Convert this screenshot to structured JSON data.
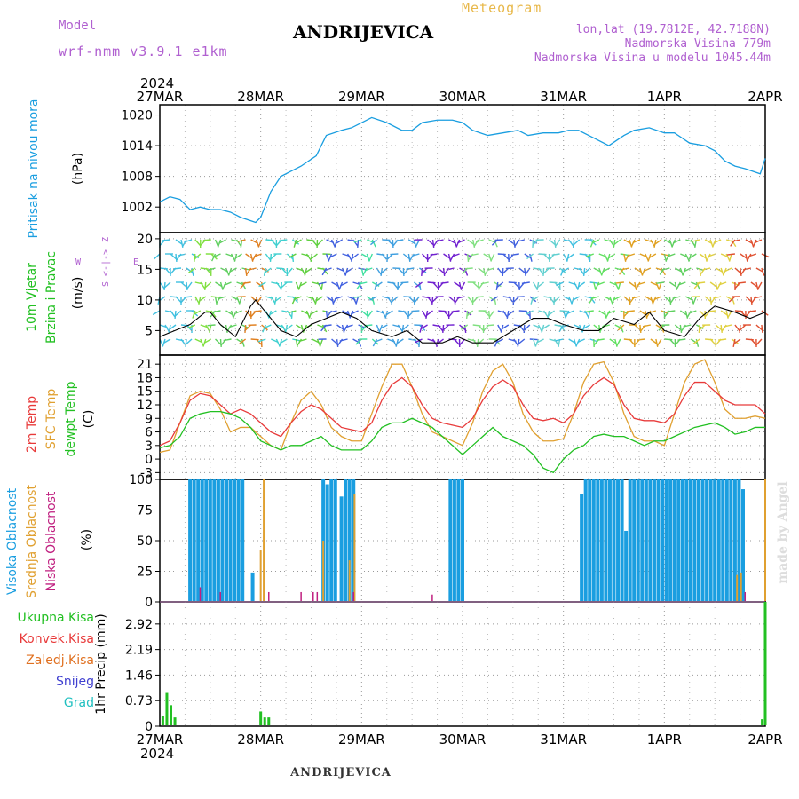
{
  "header": {
    "model_label": "Model",
    "model_name": "wrf-nmm_v3.9.1 e1km",
    "title": "ANDRIJEVICA",
    "meteogram_label": "Meteogram",
    "coords": "lon,lat (19.7812E, 42.7188N)",
    "altitude": "Nadmorska Visina 779m",
    "model_altitude": "Nadmorska Visina u modelu 1045.44m",
    "footer_station": "ANDRIJEVICA",
    "watermark": "made by Angel",
    "year_top": "2024",
    "year_bottom": "2024"
  },
  "colors": {
    "pressure": "#1a9ee0",
    "temp2m": "#e83a3a",
    "sfc_temp": "#e0a030",
    "dewpoint": "#22c022",
    "cloud_high": "#1a9ee0",
    "cloud_mid": "#e0a030",
    "cloud_low": "#c02080",
    "precip_total": "#22c022"
  },
  "chart_data": [
    {
      "type": "line",
      "ylabel": "Pritisak na nivou mora",
      "units": "(hPa)",
      "yticks": [
        1002,
        1008,
        1014,
        1020
      ],
      "ylim": [
        997,
        1022
      ],
      "x_days": [
        "27MAR",
        "28MAR",
        "29MAR",
        "30MAR",
        "31MAR",
        "1APR",
        "2APR"
      ],
      "series": [
        {
          "x": [
            0,
            0.1,
            0.2,
            0.3,
            0.4,
            0.5,
            0.6,
            0.7,
            0.8,
            0.95,
            1.0,
            1.1,
            1.2,
            1.4,
            1.55,
            1.65,
            1.8,
            1.9,
            2.0,
            2.1,
            2.25,
            2.4,
            2.5,
            2.6,
            2.75,
            2.9,
            3.0,
            3.1,
            3.25,
            3.4,
            3.55,
            3.65,
            3.8,
            3.95,
            4.05,
            4.15,
            4.3,
            4.45,
            4.6,
            4.7,
            4.85,
            5.0,
            5.1,
            5.25,
            5.4,
            5.5,
            5.6,
            5.7,
            5.8,
            5.95,
            6.0
          ],
          "values": [
            1003,
            1004,
            1003.5,
            1001.5,
            1002,
            1001.5,
            1001.5,
            1001,
            1000,
            999,
            1000,
            1005,
            1008,
            1010,
            1012,
            1016,
            1017,
            1017.5,
            1018.5,
            1019.5,
            1018.5,
            1017,
            1017,
            1018.5,
            1019,
            1019,
            1018.5,
            1017,
            1016,
            1016.5,
            1017,
            1016,
            1016.5,
            1016.5,
            1017,
            1017,
            1015.5,
            1014,
            1016,
            1017,
            1017.5,
            1016.5,
            1016.5,
            1014.5,
            1014,
            1013,
            1011,
            1010,
            1009.5,
            1008.5,
            1011.5
          ]
        }
      ]
    },
    {
      "type": "line",
      "ylabel_lines": [
        "10m Vjetar",
        "Brzina i Pravac"
      ],
      "units": "(m/s)",
      "compass": {
        "n": "Z",
        "s": "S",
        "w": "W",
        "e": "E"
      },
      "yticks": [
        5,
        10,
        15,
        20
      ],
      "ylim": [
        1,
        21
      ],
      "series": [
        {
          "name": "wind speed",
          "x": [
            0,
            0.15,
            0.3,
            0.45,
            0.5,
            0.6,
            0.75,
            0.9,
            0.95,
            1.05,
            1.2,
            1.35,
            1.5,
            1.65,
            1.8,
            1.95,
            2.1,
            2.3,
            2.45,
            2.6,
            2.8,
            2.95,
            3.1,
            3.3,
            3.5,
            3.7,
            3.85,
            4.0,
            4.2,
            4.35,
            4.5,
            4.7,
            4.85,
            5.0,
            5.2,
            5.35,
            5.5,
            5.7,
            5.85,
            6.0
          ],
          "values": [
            4,
            5,
            6,
            8,
            8,
            6,
            4,
            9,
            10,
            8,
            5,
            4,
            6,
            7,
            8,
            7,
            5,
            4,
            5,
            3,
            3,
            4,
            3,
            3,
            5,
            7,
            7,
            6,
            5,
            5,
            7,
            6,
            8,
            5,
            4,
            7,
            9,
            8,
            7,
            8
          ]
        }
      ]
    },
    {
      "type": "line",
      "ylabel_lines": [
        "2m Temp",
        "SFC Temp",
        "dewpt Temp"
      ],
      "units": "(C)",
      "yticks": [
        -3,
        0,
        3,
        6,
        9,
        12,
        15,
        18,
        21
      ],
      "ylim": [
        -4.5,
        23
      ],
      "series": [
        {
          "name": "2m Temp",
          "x": [
            0,
            0.1,
            0.2,
            0.3,
            0.4,
            0.5,
            0.6,
            0.7,
            0.8,
            0.9,
            1.0,
            1.1,
            1.2,
            1.3,
            1.4,
            1.5,
            1.6,
            1.7,
            1.8,
            1.9,
            2.0,
            2.1,
            2.2,
            2.3,
            2.4,
            2.5,
            2.6,
            2.7,
            2.8,
            2.9,
            3.0,
            3.1,
            3.2,
            3.3,
            3.4,
            3.5,
            3.6,
            3.7,
            3.8,
            3.9,
            4.0,
            4.1,
            4.2,
            4.3,
            4.4,
            4.5,
            4.6,
            4.7,
            4.8,
            4.9,
            5.0,
            5.1,
            5.2,
            5.3,
            5.4,
            5.5,
            5.6,
            5.7,
            5.8,
            5.9,
            6.0
          ],
          "values": [
            3,
            4,
            8,
            13,
            14.5,
            14,
            12,
            10,
            11,
            10,
            8,
            6,
            5,
            8,
            10.5,
            12,
            11,
            9,
            7,
            6.5,
            6,
            8,
            13,
            16.5,
            18,
            16,
            12,
            9,
            8,
            7.5,
            7,
            9,
            13,
            16,
            17.5,
            16,
            12,
            9,
            8.5,
            9,
            8,
            10,
            14,
            16.5,
            18,
            16.5,
            12,
            9,
            8.5,
            8.5,
            8,
            10,
            14,
            17,
            17,
            15,
            13,
            12,
            12,
            12,
            10
          ]
        },
        {
          "name": "SFC Temp",
          "x": [
            0,
            0.1,
            0.2,
            0.3,
            0.4,
            0.5,
            0.6,
            0.7,
            0.8,
            0.9,
            1.0,
            1.1,
            1.2,
            1.3,
            1.4,
            1.5,
            1.6,
            1.7,
            1.8,
            1.9,
            2.0,
            2.1,
            2.2,
            2.3,
            2.4,
            2.5,
            2.6,
            2.7,
            2.8,
            2.9,
            3.0,
            3.1,
            3.2,
            3.3,
            3.4,
            3.5,
            3.6,
            3.7,
            3.8,
            3.9,
            4.0,
            4.1,
            4.2,
            4.3,
            4.4,
            4.5,
            4.6,
            4.7,
            4.8,
            4.9,
            5.0,
            5.1,
            5.2,
            5.3,
            5.4,
            5.5,
            5.6,
            5.7,
            5.8,
            5.9,
            6.0
          ],
          "values": [
            1.5,
            2,
            8,
            14,
            15,
            14.5,
            11,
            6,
            7,
            7,
            5,
            3,
            2,
            8,
            13,
            15,
            12,
            7,
            5,
            4,
            4,
            10,
            16,
            21,
            21,
            16,
            10,
            6,
            5,
            4,
            3,
            8,
            15,
            19.5,
            21,
            17,
            10,
            6,
            4,
            4,
            4.5,
            10,
            17,
            21,
            21.5,
            17,
            10,
            5,
            4,
            4,
            3,
            10,
            17,
            21,
            22,
            17,
            11,
            9,
            9,
            9.5,
            9
          ]
        },
        {
          "name": "dewpt Temp",
          "x": [
            0,
            0.1,
            0.2,
            0.3,
            0.4,
            0.5,
            0.6,
            0.7,
            0.8,
            0.9,
            1.0,
            1.1,
            1.2,
            1.3,
            1.4,
            1.5,
            1.6,
            1.7,
            1.8,
            1.9,
            2.0,
            2.1,
            2.2,
            2.3,
            2.4,
            2.5,
            2.6,
            2.7,
            2.8,
            2.9,
            3.0,
            3.1,
            3.2,
            3.3,
            3.4,
            3.5,
            3.6,
            3.7,
            3.8,
            3.9,
            4.0,
            4.1,
            4.2,
            4.3,
            4.4,
            4.5,
            4.6,
            4.7,
            4.8,
            4.9,
            5.0,
            5.1,
            5.2,
            5.3,
            5.4,
            5.5,
            5.6,
            5.7,
            5.8,
            5.9,
            6.0
          ],
          "values": [
            2.5,
            3,
            5,
            9,
            10,
            10.5,
            10.5,
            10,
            9,
            7,
            4,
            3,
            2,
            3,
            3,
            4,
            5,
            3,
            2,
            2,
            2,
            4,
            7,
            8,
            8,
            9,
            8,
            7,
            5,
            3,
            1,
            3,
            5,
            7,
            5,
            4,
            3,
            1,
            -2,
            -3,
            0,
            2,
            3,
            5,
            5.5,
            5,
            5,
            4,
            3,
            4,
            4,
            5,
            6,
            7,
            7.5,
            8,
            7,
            5.5,
            6,
            7,
            7
          ]
        }
      ]
    },
    {
      "type": "bar",
      "ylabel_lines": [
        "Visoka Oblacnost",
        "Srednja Oblacnost",
        "Niska Oblacnost"
      ],
      "units": "(%)",
      "yticks": [
        0,
        25,
        50,
        75,
        100
      ],
      "ylim": [
        0,
        100
      ],
      "series": [
        {
          "name": "Visoka Oblacnost",
          "x": [
            0.3,
            0.34,
            0.38,
            0.42,
            0.46,
            0.5,
            0.54,
            0.58,
            0.62,
            0.66,
            0.7,
            0.74,
            0.78,
            0.82,
            0.92,
            1.62,
            1.66,
            1.7,
            1.74,
            1.8,
            1.84,
            1.88,
            1.92,
            2.88,
            2.92,
            2.96,
            3.0,
            4.18,
            4.22,
            4.26,
            4.3,
            4.34,
            4.38,
            4.42,
            4.46,
            4.5,
            4.54,
            4.58,
            4.62,
            4.66,
            4.7,
            4.74,
            4.78,
            4.82,
            4.86,
            4.9,
            4.94,
            4.98,
            5.02,
            5.06,
            5.1,
            5.14,
            5.18,
            5.22,
            5.26,
            5.3,
            5.34,
            5.38,
            5.42,
            5.46,
            5.5,
            5.54,
            5.58,
            5.62,
            5.66,
            5.7,
            5.74,
            5.78
          ],
          "values": [
            100,
            100,
            100,
            100,
            100,
            100,
            100,
            100,
            100,
            100,
            100,
            100,
            100,
            100,
            24,
            100,
            96,
            100,
            100,
            86,
            100,
            100,
            100,
            100,
            100,
            100,
            100,
            88,
            100,
            100,
            100,
            100,
            100,
            100,
            100,
            100,
            100,
            100,
            58,
            100,
            100,
            100,
            100,
            100,
            100,
            100,
            100,
            100,
            100,
            100,
            100,
            100,
            100,
            100,
            100,
            100,
            100,
            100,
            100,
            100,
            100,
            100,
            100,
            100,
            100,
            100,
            100,
            92
          ]
        },
        {
          "name": "Srednja Oblacnost",
          "x": [
            1.0,
            1.03,
            1.62,
            1.88,
            1.93,
            5.72,
            5.76,
            6.0
          ],
          "values": [
            42,
            100,
            50,
            34,
            88,
            22,
            24,
            100
          ]
        },
        {
          "name": "Niska Oblacnost",
          "x": [
            0.4,
            0.6,
            1.08,
            1.4,
            1.52,
            1.56,
            1.92,
            2.7,
            5.8
          ],
          "values": [
            12,
            8,
            8,
            8,
            8,
            8,
            8,
            6,
            8
          ]
        }
      ]
    },
    {
      "type": "bar",
      "ylabel_lines": [
        "Ukupna Kisa",
        "Konvek.Kisa",
        "Zaledj.Kisa",
        "Snijeg",
        "Grad"
      ],
      "units": "1hr Precip (mm)",
      "yticks": [
        0,
        0.73,
        1.46,
        2.19,
        2.92
      ],
      "ylim": [
        0,
        3.55
      ],
      "series": [
        {
          "name": "Ukupna Kisa",
          "x": [
            0.03,
            0.07,
            0.11,
            0.15,
            1.0,
            1.04,
            1.08,
            5.97,
            6.0
          ],
          "values": [
            0.3,
            0.95,
            0.6,
            0.25,
            0.42,
            0.25,
            0.25,
            0.2,
            3.55
          ]
        }
      ]
    }
  ]
}
